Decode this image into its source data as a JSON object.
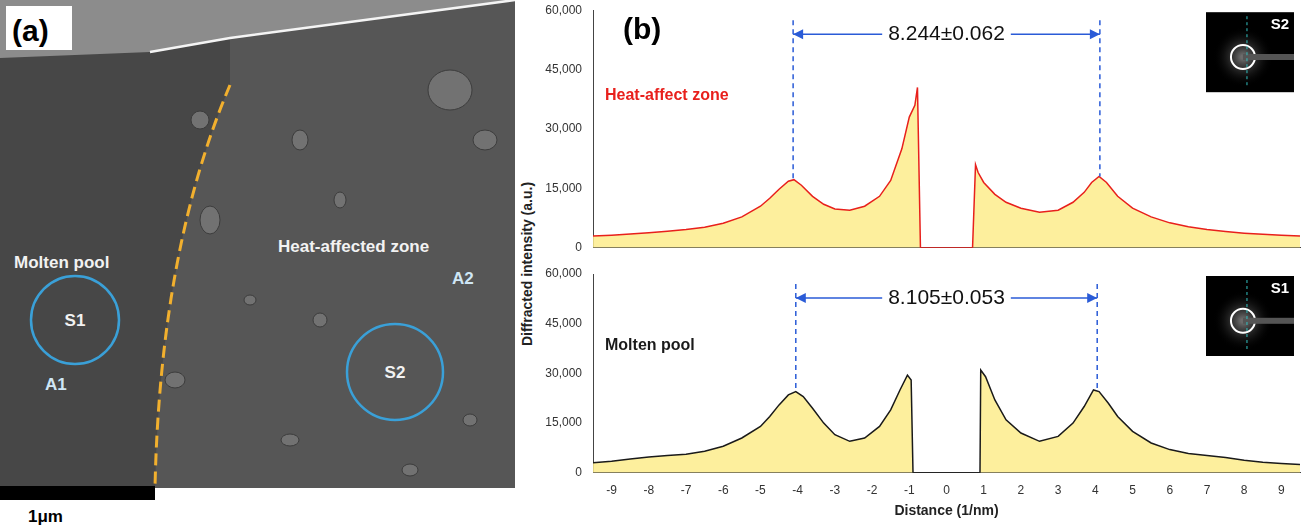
{
  "panel_a": {
    "label": "(a)",
    "regions": [
      {
        "name": "Molten pool",
        "spot": "S1",
        "area": "A1"
      },
      {
        "name": "Heat-affected zone",
        "spot": "S2",
        "area": "A2"
      }
    ],
    "scale_bar": "1μm"
  },
  "panel_b": {
    "label": "(b)",
    "ylabel": "Diffracted intensity (a.u.)"
  },
  "chart_data": [
    {
      "type": "line",
      "x": [
        -9.5,
        -9,
        -8.5,
        -8,
        -7.5,
        -7,
        -6.5,
        -6,
        -5.5,
        -5,
        -4.75,
        -4.5,
        -4.25,
        -4.1,
        -3.9,
        -3.6,
        -3.3,
        -3,
        -2.6,
        -2.2,
        -1.8,
        -1.5,
        -1.2,
        -1,
        -0.85,
        -0.78,
        -0.7,
        0.7,
        0.78,
        0.85,
        1,
        1.3,
        1.6,
        2,
        2.5,
        3,
        3.4,
        3.7,
        3.9,
        4.1,
        4.3,
        4.6,
        5,
        5.5,
        6,
        6.5,
        7,
        7.5,
        8,
        8.5,
        9,
        9.5
      ],
      "series": [
        {
          "name": "Heat-affect zone",
          "color": "#e8201c",
          "values": [
            3000,
            3200,
            3500,
            3800,
            4200,
            4600,
            5200,
            6200,
            7800,
            10500,
            12500,
            14800,
            16800,
            17200,
            15800,
            13000,
            11000,
            9800,
            9500,
            10500,
            13000,
            17000,
            25000,
            33000,
            36000,
            40500,
            0,
            0,
            21000,
            19000,
            16500,
            13500,
            11500,
            10000,
            9000,
            9500,
            11500,
            14000,
            16500,
            18000,
            16500,
            13000,
            10000,
            7800,
            6300,
            5300,
            4600,
            4100,
            3700,
            3400,
            3200,
            3000
          ]
        }
      ],
      "xlim": [
        -9.5,
        9.5
      ],
      "xticks": [
        -9,
        -8,
        -7,
        -6,
        -5,
        -4,
        -3,
        -2,
        -1,
        0,
        1,
        2,
        3,
        4,
        5,
        6,
        7,
        8,
        9
      ],
      "ylim": [
        0,
        60000
      ],
      "yticks": [
        0,
        {
          "value": 15000,
          "label": "15,000"
        },
        {
          "value": 30000,
          "label": "30,000"
        },
        {
          "value": 45000,
          "label": "45,000"
        },
        {
          "value": 60000,
          "label": "60,000"
        }
      ],
      "annotations": [
        {
          "text": "8.244±0.062",
          "x": [
            -4.122,
            4.122
          ]
        }
      ],
      "inset_label": "S2",
      "grid": false,
      "tick_labels": "y"
    },
    {
      "type": "line",
      "x": [
        -9.5,
        -9,
        -8.5,
        -8,
        -7.5,
        -7,
        -6.5,
        -6,
        -5.5,
        -5,
        -4.75,
        -4.5,
        -4.25,
        -4.05,
        -3.85,
        -3.6,
        -3.3,
        -3,
        -2.6,
        -2.2,
        -1.8,
        -1.5,
        -1.25,
        -1.05,
        -0.95,
        -0.9,
        0.9,
        0.92,
        1.05,
        1.3,
        1.6,
        2,
        2.5,
        3,
        3.4,
        3.7,
        3.95,
        4.1,
        4.35,
        4.6,
        5,
        5.5,
        6,
        6.5,
        7,
        7.5,
        8,
        8.5,
        9,
        9.5
      ],
      "series": [
        {
          "name": "Molten pool",
          "color": "#1a1a1a",
          "values": [
            3000,
            3500,
            4200,
            4800,
            5200,
            5600,
            6500,
            8000,
            10500,
            14000,
            17000,
            20500,
            23500,
            24500,
            23000,
            19500,
            15000,
            11500,
            9500,
            10500,
            14000,
            19000,
            25000,
            29500,
            28000,
            0,
            0,
            31000,
            29000,
            22000,
            16000,
            12000,
            9500,
            11000,
            15000,
            20000,
            25000,
            24500,
            21000,
            17000,
            12500,
            9000,
            7000,
            5800,
            5200,
            4600,
            3800,
            3200,
            2800,
            2500
          ]
        }
      ],
      "xlim": [
        -9.5,
        9.5
      ],
      "xticks": [
        -9,
        -8,
        -7,
        -6,
        -5,
        -4,
        -3,
        -2,
        -1,
        0,
        1,
        2,
        3,
        4,
        5,
        6,
        7,
        8,
        9
      ],
      "ylim": [
        0,
        60000
      ],
      "yticks": [
        0,
        {
          "value": 15000,
          "label": "15,000"
        },
        {
          "value": 30000,
          "label": "30,000"
        },
        {
          "value": 45000,
          "label": "45,000"
        },
        {
          "value": 60000,
          "label": "60,000"
        }
      ],
      "xlabel": "Distance (1/nm)",
      "annotations": [
        {
          "text": "8.105±0.053",
          "x": [
            -4.05,
            4.05
          ]
        }
      ],
      "inset_label": "S1",
      "grid": false
    }
  ]
}
